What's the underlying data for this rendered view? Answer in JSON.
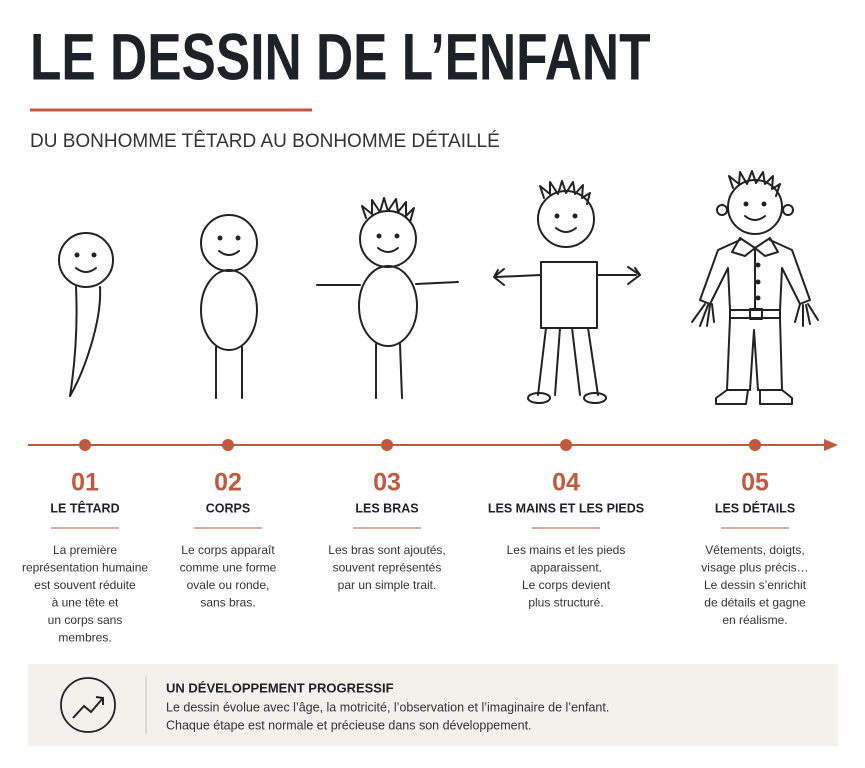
{
  "header": {
    "title": "LE DESSIN DE L’ENFANT",
    "subtitle": "DU BONHOMME TÊTARD AU BONHOMME DÉTAILLÉ"
  },
  "stages": [
    {
      "number": "01",
      "title": "LE TÊTARD",
      "lines": [
        "La première",
        "représentation humaine",
        "est souvent réduite",
        "à une tête et",
        "un corps sans",
        "membres."
      ]
    },
    {
      "number": "02",
      "title": "CORPS",
      "lines": [
        "Le corps apparaît",
        "comme une forme",
        "ovale ou ronde,",
        "sans bras."
      ]
    },
    {
      "number": "03",
      "title": "LES BRAS",
      "lines": [
        "Les bras sont ajoutés,",
        "souvent représentés",
        "par un simple trait."
      ]
    },
    {
      "number": "04",
      "title": "LES MAINS ET LES PIEDS",
      "lines": [
        "Les mains et les pieds",
        "apparaissent.",
        "Le corps devient",
        "plus structuré."
      ]
    },
    {
      "number": "05",
      "title": "LES DÉTAILS",
      "lines": [
        "Vêtements, doigts,",
        "visage plus précis…",
        "Le dessin s’enrichit",
        "de détails et gagne",
        "en réalisme."
      ]
    }
  ],
  "footer": {
    "title": "UN DÉVELOPPEMENT PROGRESSIF",
    "lines": [
      "Le dessin évolue avec l’âge, la motricité, l’observation et l’imaginaire de l’enfant.",
      "Chaque étape est normale et précieuse dans son développement."
    ]
  }
}
